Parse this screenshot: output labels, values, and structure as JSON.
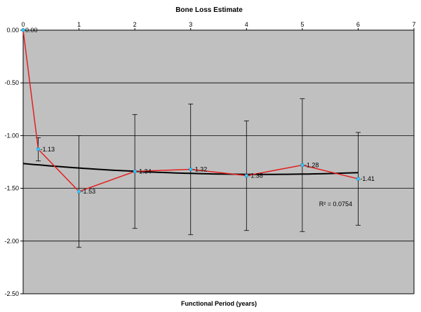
{
  "chart_data": {
    "type": "line",
    "title": "Bone Loss Estimate",
    "xlabel": "Functional Period (years)",
    "ylabel": "",
    "xlim": [
      0,
      7
    ],
    "ylim": [
      -2.5,
      0.0
    ],
    "x_ticks": [
      "0",
      "1",
      "2",
      "3",
      "4",
      "5",
      "6",
      "7"
    ],
    "y_ticks": [
      "0.00",
      "-0.50",
      "-1.00",
      "-1.50",
      "-2.00",
      "-2.50"
    ],
    "grid": "horizontal",
    "plot_background": "#c0c0c0",
    "series": [
      {
        "color": "#e32020",
        "marker_color": "#33ccff",
        "points": [
          {
            "x": 0,
            "y": 0.0,
            "label": "0.00"
          },
          {
            "x": 0.27,
            "y": -1.13,
            "label": "-1.13",
            "err_lo": 0.11,
            "err_hi": 0.11
          },
          {
            "x": 1,
            "y": -1.53,
            "label": "-1.53",
            "err_lo": 0.53,
            "err_hi": 0.53
          },
          {
            "x": 2,
            "y": -1.34,
            "label": "-1.34",
            "err_lo": 0.54,
            "err_hi": 0.54
          },
          {
            "x": 3,
            "y": -1.32,
            "label": "-1.32",
            "err_lo": 0.62,
            "err_hi": 0.62
          },
          {
            "x": 4,
            "y": -1.38,
            "label": "-1.38",
            "err_lo": 0.52,
            "err_hi": 0.52
          },
          {
            "x": 5,
            "y": -1.28,
            "label": "-1.28",
            "err_lo": 0.63,
            "err_hi": 0.63
          },
          {
            "x": 6,
            "y": -1.41,
            "label": "-1.41",
            "err_lo": 0.44,
            "err_hi": 0.44
          }
        ]
      }
    ],
    "trendline": {
      "type": "polynomial",
      "color": "#000000",
      "coefficients": [
        -1.265,
        -0.048,
        0.0056
      ],
      "x_start": 0,
      "x_end": 6,
      "r2_label": "R² = 0.0754"
    }
  }
}
